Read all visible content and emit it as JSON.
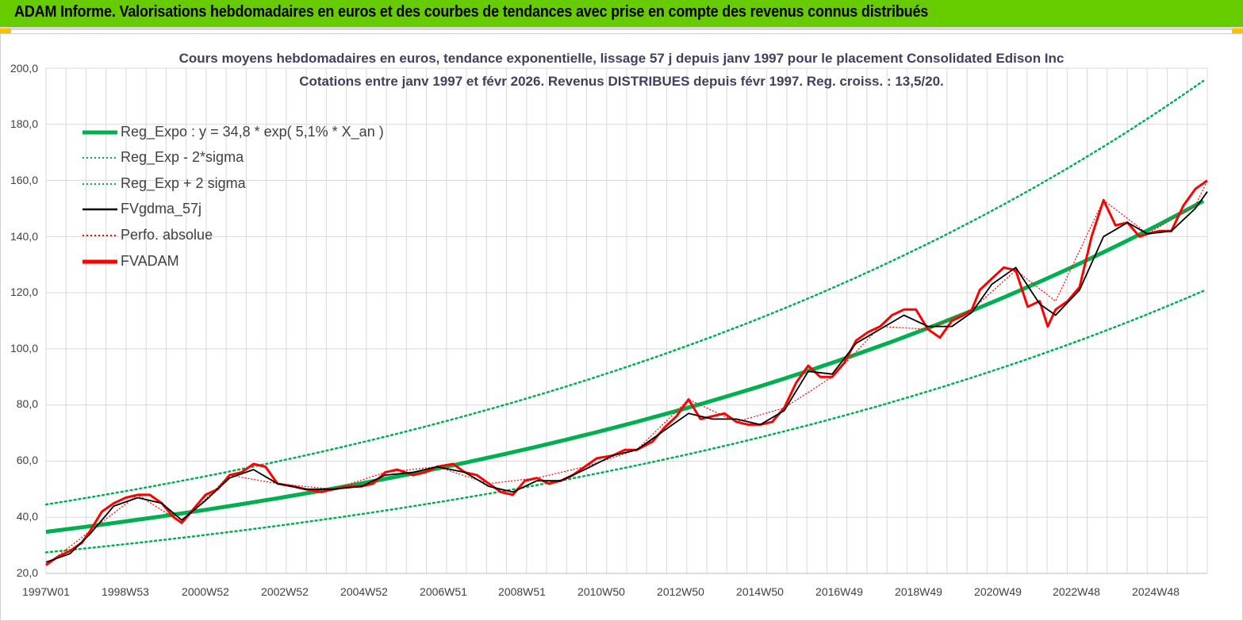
{
  "header": {
    "title": "ADAM Informe. Valorisations hebdomadaires en euros et des courbes de tendances avec prise en compte des revenus connus distribués"
  },
  "colors": {
    "header_bg": "#66cc00",
    "reg_expo": "#00b050",
    "sigma_lines": "#00b050",
    "fvgdma": "#000000",
    "perfo": "#ff0000",
    "fvadam": "#ff0000",
    "grid": "#d9d9d9"
  },
  "chart_data": {
    "type": "line",
    "title": "Cours moyens hebdomadaires en euros, tendance exponentielle, lissage 57 j depuis janv 1997 pour le placement Consolidated Edison Inc",
    "subtitle": "Cotations entre janv 1997 et févr 2026. Revenus DISTRIBUES depuis févr 1997. Reg. croiss. : 13,5/20.",
    "xlabel": "",
    "ylabel": "",
    "ylim": [
      20,
      200
    ],
    "y_ticks": [
      "20,0",
      "40,0",
      "60,0",
      "80,0",
      "100,0",
      "120,0",
      "140,0",
      "160,0",
      "180,0",
      "200,0"
    ],
    "x_ticks": [
      "1997W01",
      "1998W53",
      "2000W52",
      "2002W52",
      "2004W52",
      "2006W51",
      "2008W51",
      "2010W50",
      "2012W50",
      "2014W50",
      "2016W49",
      "2018W49",
      "2020W49",
      "2022W48",
      "2024W48"
    ],
    "x_range": [
      1997.0,
      2026.1
    ],
    "grid": true,
    "legend_position": "top-left",
    "legend": [
      {
        "name": "Reg_Expo : y = 34,8 * exp( 5,1% *  X_an )",
        "style": "thick-solid",
        "color": "#00b050"
      },
      {
        "name": "Reg_Exp - 2*sigma",
        "style": "dotted",
        "color": "#00b050"
      },
      {
        "name": "Reg_Exp + 2 sigma",
        "style": "dotted",
        "color": "#00b050"
      },
      {
        "name": "FVgdma_57j",
        "style": "solid",
        "color": "#000000"
      },
      {
        "name": "Perfo. absolue",
        "style": "dotted",
        "color": "#ff0000"
      },
      {
        "name": "FVADAM",
        "style": "thick-solid",
        "color": "#ff0000"
      }
    ],
    "trend": {
      "a": 34.8,
      "rate": 0.051,
      "start_year": 1997.0,
      "minus_2sigma_factor": 0.79,
      "plus_2sigma_factor": 1.28
    },
    "fvadam": {
      "x": [
        1997.0,
        1997.3,
        1997.6,
        1997.9,
        1998.1,
        1998.4,
        1998.7,
        1999.0,
        1999.3,
        1999.6,
        1999.9,
        2000.2,
        2000.4,
        2000.7,
        2001.0,
        2001.3,
        2001.6,
        2001.9,
        2002.2,
        2002.5,
        2002.8,
        2003.2,
        2003.5,
        2003.9,
        2004.2,
        2004.6,
        2004.9,
        2005.2,
        2005.5,
        2005.8,
        2006.2,
        2006.5,
        2006.8,
        2007.2,
        2007.5,
        2007.8,
        2008.1,
        2008.4,
        2008.7,
        2009.0,
        2009.3,
        2009.6,
        2009.9,
        2010.2,
        2010.5,
        2010.8,
        2011.2,
        2011.5,
        2011.8,
        2012.2,
        2012.5,
        2012.8,
        2013.1,
        2013.4,
        2013.7,
        2014.0,
        2014.3,
        2014.6,
        2014.9,
        2015.2,
        2015.5,
        2015.8,
        2016.1,
        2016.4,
        2016.7,
        2017.0,
        2017.3,
        2017.6,
        2017.9,
        2018.2,
        2018.5,
        2018.8,
        2019.1,
        2019.4,
        2019.7,
        2020.0,
        2020.2,
        2020.4,
        2020.7,
        2021.0,
        2021.3,
        2021.6,
        2021.9,
        2022.1,
        2022.3,
        2022.6,
        2022.9,
        2023.2,
        2023.5,
        2023.8,
        2024.1,
        2024.4,
        2024.6,
        2024.9,
        2025.2,
        2025.5,
        2025.8,
        2026.1
      ],
      "y": [
        23,
        26,
        28,
        31,
        35,
        42,
        45,
        47,
        48,
        48,
        45,
        40,
        38,
        43,
        48,
        50,
        55,
        56,
        59,
        58,
        52,
        51,
        50,
        49,
        50,
        51,
        51,
        52,
        56,
        57,
        55,
        56,
        58,
        59,
        56,
        55,
        52,
        49,
        48,
        53,
        54,
        52,
        53,
        55,
        58,
        61,
        62,
        64,
        64,
        67,
        72,
        76,
        82,
        75,
        76,
        77,
        74,
        73,
        73,
        74,
        79,
        88,
        94,
        90,
        90,
        95,
        103,
        106,
        108,
        112,
        114,
        114,
        107,
        104,
        110,
        112,
        114,
        121,
        125,
        129,
        128,
        115,
        117,
        108,
        114,
        117,
        122,
        140,
        153,
        144,
        145,
        140,
        141,
        142,
        142,
        151,
        157,
        160
      ]
    },
    "fvgdma_57j": {
      "x": [
        1997.0,
        1997.6,
        1998.1,
        1998.7,
        1999.3,
        1999.9,
        2000.4,
        2001.0,
        2001.6,
        2002.2,
        2002.8,
        2003.5,
        2004.2,
        2004.9,
        2005.5,
        2006.2,
        2006.8,
        2007.5,
        2008.1,
        2008.7,
        2009.3,
        2009.9,
        2010.5,
        2011.2,
        2011.8,
        2012.5,
        2013.1,
        2013.7,
        2014.3,
        2014.9,
        2015.5,
        2016.1,
        2016.7,
        2017.3,
        2017.9,
        2018.5,
        2019.1,
        2019.7,
        2020.2,
        2020.7,
        2021.3,
        2021.9,
        2022.3,
        2022.9,
        2023.5,
        2024.1,
        2024.6,
        2025.2,
        2025.8,
        2026.1
      ],
      "y": [
        24,
        27,
        34,
        44,
        47,
        45,
        39,
        46,
        54,
        57,
        52,
        50,
        50,
        51,
        55,
        56,
        58,
        56,
        51,
        49,
        53,
        53,
        57,
        62,
        64,
        71,
        77,
        75,
        75,
        73,
        78,
        92,
        91,
        102,
        107,
        112,
        108,
        108,
        113,
        123,
        129,
        116,
        112,
        121,
        140,
        145,
        141,
        142,
        150,
        156
      ]
    },
    "perfo_absolue": {
      "x": [
        1997.0,
        1998.1,
        1999.3,
        2000.4,
        2001.6,
        2002.8,
        2004.2,
        2005.5,
        2006.8,
        2008.1,
        2009.3,
        2010.5,
        2011.8,
        2013.1,
        2014.3,
        2015.5,
        2016.7,
        2017.9,
        2019.1,
        2020.2,
        2021.3,
        2022.3,
        2023.5,
        2024.6,
        2025.8,
        2026.1
      ],
      "y": [
        23,
        35,
        48,
        38,
        55,
        52,
        50,
        56,
        58,
        52,
        54,
        58,
        64,
        82,
        74,
        79,
        90,
        108,
        107,
        114,
        128,
        117,
        153,
        141,
        151,
        160
      ]
    }
  }
}
